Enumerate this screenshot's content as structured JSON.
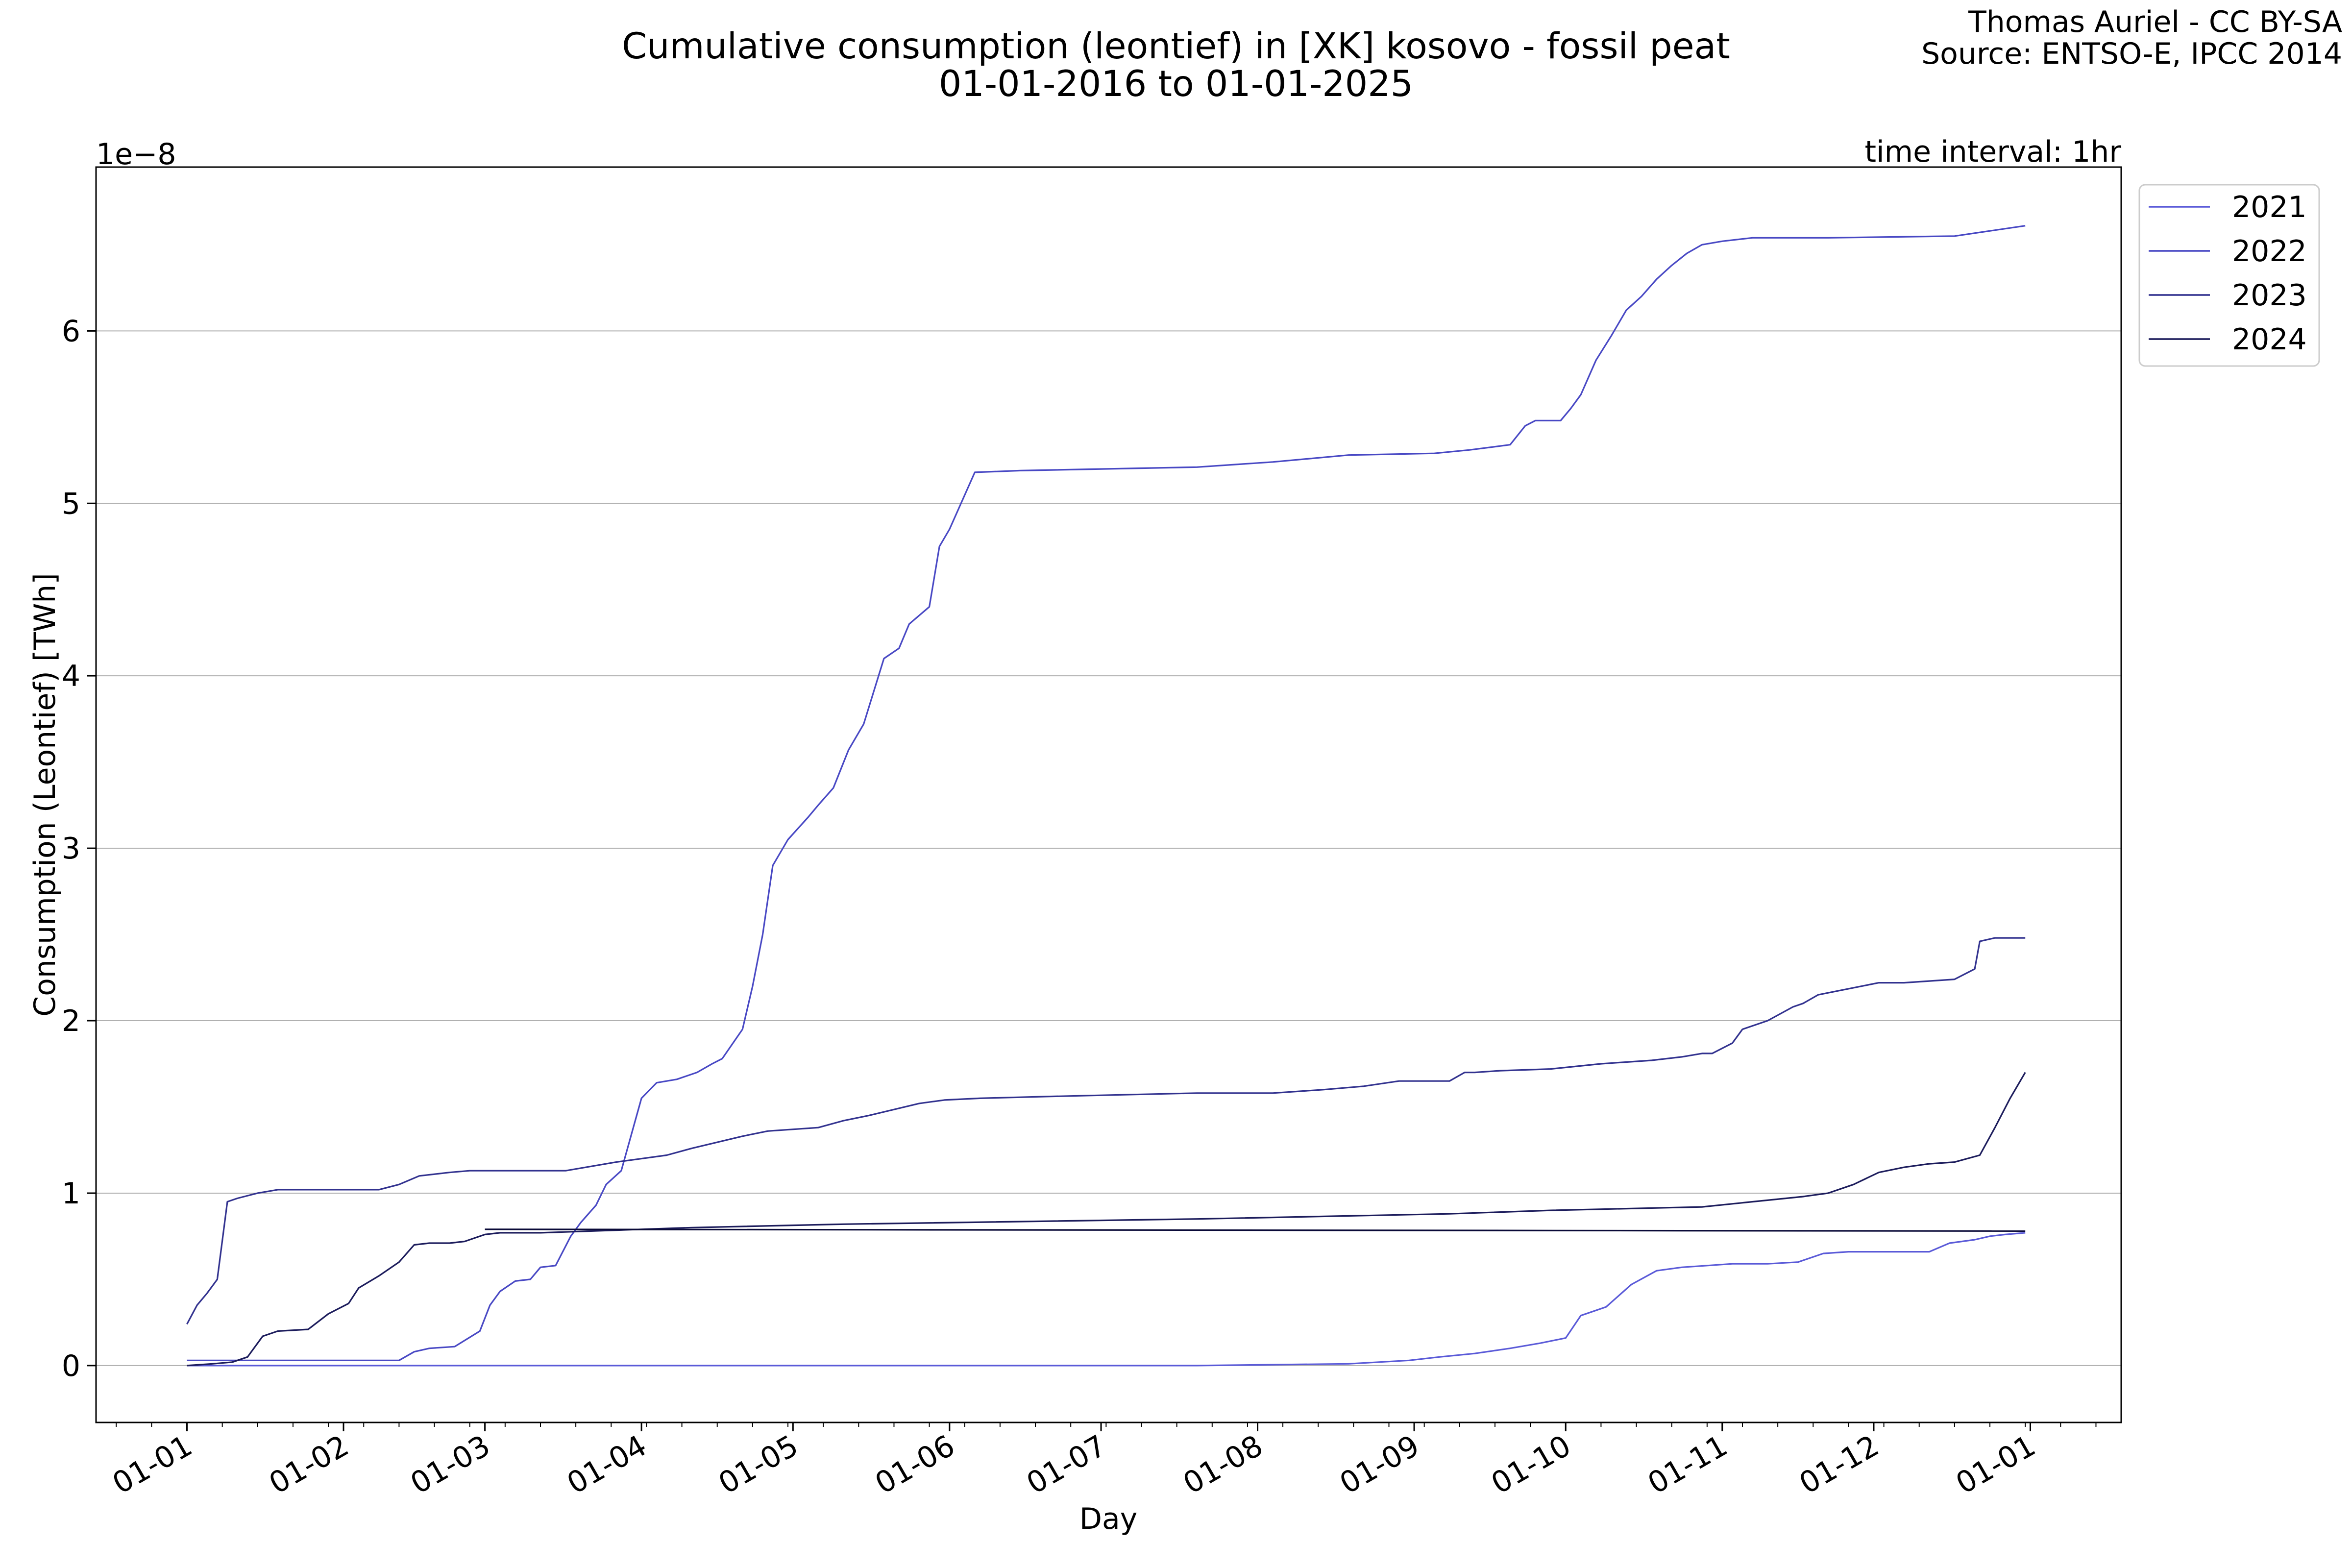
{
  "chart_data": {
    "type": "line",
    "title": "Cumulative consumption (leontief) in [XK] kosovo - fossil peat",
    "subtitle": "01-01-2016 to 01-01-2025",
    "credit_line1": "Thomas Auriel - CC BY-SA",
    "credit_line2": "Source: ENTSO-E, IPCC 2014",
    "interval_note": "time interval: 1hr",
    "offset_label": "1e−8",
    "xlabel": "Day",
    "ylabel": "Consumption (Leontief) [TWh]",
    "ylim": [
      -0.33,
      6.95
    ],
    "yticks": [
      0,
      1,
      2,
      3,
      4,
      5,
      6
    ],
    "xlim": [
      -18,
      383
    ],
    "xticks": [
      {
        "day": 0,
        "label": "01-01"
      },
      {
        "day": 31,
        "label": "01-02"
      },
      {
        "day": 59,
        "label": "01-03"
      },
      {
        "day": 90,
        "label": "01-04"
      },
      {
        "day": 120,
        "label": "01-05"
      },
      {
        "day": 151,
        "label": "01-06"
      },
      {
        "day": 181,
        "label": "01-07"
      },
      {
        "day": 212,
        "label": "01-08"
      },
      {
        "day": 243,
        "label": "01-09"
      },
      {
        "day": 273,
        "label": "01-10"
      },
      {
        "day": 304,
        "label": "01-11"
      },
      {
        "day": 334,
        "label": "01-12"
      },
      {
        "day": 365,
        "label": "01-01"
      }
    ],
    "grid": "horizontal",
    "legend_position": "outside top-right",
    "series": [
      {
        "name": "2021",
        "color": "#5a5ad8",
        "x": [
          0,
          30,
          50,
          100,
          200,
          230,
          242,
          248,
          255,
          262,
          268,
          273,
          276,
          281,
          286,
          291,
          296,
          301,
          306,
          313,
          319,
          324,
          329,
          333,
          345,
          349,
          354,
          357,
          360,
          364
        ],
        "y": [
          0,
          0,
          0,
          0,
          0,
          0.01,
          0.03,
          0.05,
          0.07,
          0.1,
          0.13,
          0.16,
          0.29,
          0.34,
          0.47,
          0.55,
          0.57,
          0.58,
          0.59,
          0.59,
          0.6,
          0.65,
          0.66,
          0.66,
          0.66,
          0.71,
          0.73,
          0.75,
          0.76,
          0.77
        ]
      },
      {
        "name": "2022",
        "color": "#4848c4",
        "x": [
          0,
          42,
          45,
          48,
          53,
          58,
          60,
          62,
          65,
          68,
          70,
          73,
          76,
          78,
          81,
          83,
          86,
          90,
          93,
          97,
          101,
          104,
          106,
          110,
          112,
          114,
          116,
          119,
          123,
          125,
          128,
          131,
          134,
          138,
          141,
          143,
          147,
          149,
          151,
          156,
          165,
          200,
          215,
          230,
          247,
          254,
          262,
          265,
          267,
          272,
          274,
          276,
          279,
          282,
          285,
          288,
          291,
          294,
          297,
          300,
          304,
          310,
          315,
          325,
          350,
          364
        ],
        "y": [
          0.03,
          0.03,
          0.08,
          0.1,
          0.11,
          0.2,
          0.35,
          0.43,
          0.49,
          0.5,
          0.57,
          0.58,
          0.75,
          0.83,
          0.93,
          1.05,
          1.13,
          1.55,
          1.64,
          1.66,
          1.7,
          1.75,
          1.78,
          1.95,
          2.2,
          2.5,
          2.9,
          3.05,
          3.18,
          3.25,
          3.35,
          3.57,
          3.72,
          4.1,
          4.16,
          4.3,
          4.4,
          4.75,
          4.85,
          5.18,
          5.19,
          5.21,
          5.24,
          5.28,
          5.29,
          5.31,
          5.34,
          5.45,
          5.48,
          5.48,
          5.55,
          5.63,
          5.83,
          5.97,
          6.12,
          6.2,
          6.3,
          6.38,
          6.45,
          6.5,
          6.52,
          6.54,
          6.54,
          6.54,
          6.55,
          6.61
        ]
      },
      {
        "name": "2023",
        "color": "#32328f",
        "x": [
          0,
          2,
          4,
          6,
          8,
          10,
          14,
          18,
          22,
          30,
          38,
          42,
          46,
          52,
          56,
          60,
          75,
          85,
          90,
          95,
          100,
          110,
          115,
          125,
          130,
          135,
          145,
          150,
          157,
          170,
          185,
          200,
          215,
          225,
          233,
          240,
          250,
          253,
          255,
          260,
          270,
          280,
          285,
          290,
          296,
          300,
          302,
          306,
          308,
          313,
          318,
          320,
          323,
          335,
          340,
          345,
          350,
          354,
          355,
          358,
          364
        ],
        "y": [
          0.24,
          0.35,
          0.42,
          0.5,
          0.95,
          0.97,
          1.0,
          1.02,
          1.02,
          1.02,
          1.02,
          1.05,
          1.1,
          1.12,
          1.13,
          1.13,
          1.13,
          1.18,
          1.2,
          1.22,
          1.26,
          1.33,
          1.36,
          1.38,
          1.42,
          1.45,
          1.52,
          1.54,
          1.55,
          1.56,
          1.57,
          1.58,
          1.58,
          1.6,
          1.62,
          1.65,
          1.65,
          1.7,
          1.7,
          1.71,
          1.72,
          1.75,
          1.76,
          1.77,
          1.79,
          1.81,
          1.81,
          1.87,
          1.95,
          2.0,
          2.08,
          2.1,
          2.15,
          2.22,
          2.22,
          2.23,
          2.24,
          2.3,
          2.46,
          2.48,
          2.48
        ]
      },
      {
        "name": "2024",
        "color": "#1c1c5c",
        "x": [
          0,
          5,
          9,
          12,
          15,
          18,
          24,
          28,
          32,
          34,
          38,
          42,
          45,
          48,
          52,
          55,
          59,
          62,
          70,
          80,
          90,
          100,
          130,
          200,
          250,
          270,
          300,
          320,
          325,
          330,
          335,
          340,
          345,
          350,
          355,
          358,
          361,
          364
        ],
        "y": [
          0,
          0.01,
          0.02,
          0.05,
          0.17,
          0.2,
          0.21,
          0.3,
          0.36,
          0.45,
          0.52,
          0.6,
          0.7,
          0.71,
          0.71,
          0.72,
          0.76,
          0.77,
          0.77,
          0.78,
          0.79,
          0.8,
          0.82,
          0.85,
          0.88,
          0.9,
          0.92,
          0.98,
          1.0,
          1.05,
          1.12,
          1.15,
          1.17,
          1.18,
          1.22,
          1.38,
          1.55,
          1.7
        ]
      },
      {
        "name": "",
        "color": "#0a0a38",
        "x": [
          59,
          364
        ],
        "y": [
          0.79,
          0.78
        ]
      }
    ]
  }
}
